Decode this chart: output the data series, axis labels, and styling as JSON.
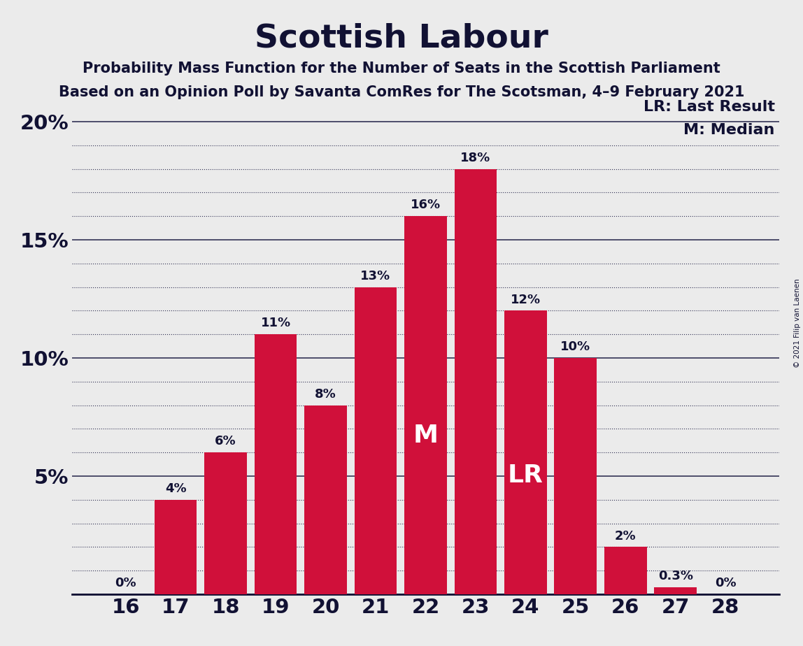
{
  "title": "Scottish Labour",
  "subtitle1": "Probability Mass Function for the Number of Seats in the Scottish Parliament",
  "subtitle2": "Based on an Opinion Poll by Savanta ComRes for The Scotsman, 4–9 February 2021",
  "copyright": "© 2021 Filip van Laenen",
  "categories": [
    16,
    17,
    18,
    19,
    20,
    21,
    22,
    23,
    24,
    25,
    26,
    27,
    28
  ],
  "values": [
    0.0,
    4.0,
    6.0,
    11.0,
    8.0,
    13.0,
    16.0,
    18.0,
    12.0,
    10.0,
    2.0,
    0.3,
    0.0
  ],
  "labels": [
    "0%",
    "4%",
    "6%",
    "11%",
    "8%",
    "13%",
    "16%",
    "18%",
    "12%",
    "10%",
    "2%",
    "0.3%",
    "0%"
  ],
  "bar_color": "#D0103A",
  "background_color": "#EBEBEB",
  "median_bar": 22,
  "last_result_bar": 24,
  "ylim": [
    0,
    20.5
  ],
  "major_yticks": [
    0,
    5,
    10,
    15,
    20
  ],
  "minor_yticks": [
    1,
    2,
    3,
    4,
    6,
    7,
    8,
    9,
    11,
    12,
    13,
    14,
    16,
    17,
    18,
    19
  ],
  "legend_lr": "LR: Last Result",
  "legend_m": "M: Median",
  "text_color": "#111133"
}
